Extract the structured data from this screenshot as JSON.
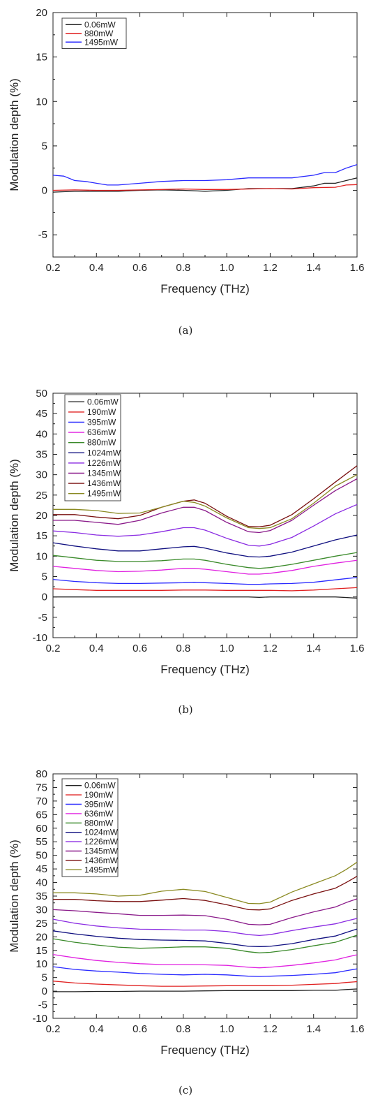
{
  "chart_data": [
    {
      "type": "line",
      "caption": "(a)",
      "xlabel": "Frequency (THz)",
      "ylabel": "Modulation depth (%)",
      "xlim": [
        0.2,
        1.6
      ],
      "ylim": [
        -7.5,
        20
      ],
      "xticks": [
        "0.2",
        "0.4",
        "0.6",
        "0.8",
        "1.0",
        "1.2",
        "1.4",
        "1.6"
      ],
      "yticks": [
        "-5",
        "0",
        "5",
        "10",
        "15",
        "20"
      ],
      "legend_position": "top-left",
      "series": [
        {
          "name": "0.06mW",
          "color": "#222222",
          "x": [
            0.2,
            0.3,
            0.4,
            0.5,
            0.6,
            0.7,
            0.8,
            0.9,
            1.0,
            1.1,
            1.2,
            1.3,
            1.4,
            1.45,
            1.5,
            1.55,
            1.6
          ],
          "y": [
            -0.2,
            -0.1,
            -0.1,
            -0.1,
            0.0,
            0.05,
            0.0,
            -0.1,
            0.0,
            0.2,
            0.2,
            0.2,
            0.5,
            0.8,
            0.8,
            1.1,
            1.4
          ]
        },
        {
          "name": "880mW",
          "color": "#e02020",
          "x": [
            0.2,
            0.3,
            0.4,
            0.5,
            0.6,
            0.7,
            0.8,
            0.9,
            1.0,
            1.1,
            1.2,
            1.3,
            1.4,
            1.5,
            1.55,
            1.6
          ],
          "y": [
            0.0,
            0.05,
            0.0,
            0.0,
            0.05,
            0.1,
            0.15,
            0.1,
            0.1,
            0.15,
            0.2,
            0.15,
            0.3,
            0.35,
            0.6,
            0.65
          ]
        },
        {
          "name": "1495mW",
          "color": "#2a2aff",
          "x": [
            0.2,
            0.25,
            0.3,
            0.35,
            0.4,
            0.45,
            0.5,
            0.55,
            0.6,
            0.7,
            0.8,
            0.9,
            1.0,
            1.1,
            1.2,
            1.3,
            1.4,
            1.45,
            1.5,
            1.55,
            1.6
          ],
          "y": [
            1.7,
            1.6,
            1.1,
            1.0,
            0.8,
            0.6,
            0.6,
            0.7,
            0.8,
            1.0,
            1.1,
            1.1,
            1.2,
            1.4,
            1.4,
            1.4,
            1.7,
            2.0,
            2.0,
            2.5,
            2.9
          ]
        }
      ]
    },
    {
      "type": "line",
      "caption": "(b)",
      "xlabel": "Frequency (THz)",
      "ylabel": "Modulation depth (%)",
      "xlim": [
        0.2,
        1.6
      ],
      "ylim": [
        -10,
        50
      ],
      "xticks": [
        "0.2",
        "0.4",
        "0.6",
        "0.8",
        "1.0",
        "1.2",
        "1.4",
        "1.6"
      ],
      "yticks": [
        "-10",
        "-5",
        "0",
        "5",
        "10",
        "15",
        "20",
        "25",
        "30",
        "35",
        "40",
        "45",
        "50"
      ],
      "legend_position": "top-left",
      "x": [
        0.2,
        0.3,
        0.4,
        0.5,
        0.6,
        0.7,
        0.8,
        0.85,
        0.9,
        1.0,
        1.1,
        1.15,
        1.2,
        1.3,
        1.4,
        1.5,
        1.6
      ],
      "series": [
        {
          "name": "0.06mW",
          "color": "#222222",
          "y": [
            0,
            0,
            0,
            0,
            0,
            0,
            0,
            0,
            0,
            0,
            0,
            -0.1,
            0,
            0,
            0,
            0,
            -0.3
          ]
        },
        {
          "name": "190mW",
          "color": "#e02020",
          "y": [
            2,
            1.8,
            1.6,
            1.6,
            1.6,
            1.6,
            1.7,
            1.7,
            1.7,
            1.6,
            1.6,
            1.6,
            1.6,
            1.5,
            1.7,
            2,
            2.3
          ]
        },
        {
          "name": "395mW",
          "color": "#2a2aff",
          "y": [
            4.3,
            3.8,
            3.5,
            3.3,
            3.3,
            3.4,
            3.5,
            3.6,
            3.5,
            3.3,
            3.1,
            3.1,
            3.2,
            3.3,
            3.6,
            4.2,
            4.8
          ]
        },
        {
          "name": "636mW",
          "color": "#e020e0",
          "y": [
            7.5,
            7,
            6.5,
            6.2,
            6.3,
            6.6,
            7,
            7,
            6.8,
            6.2,
            5.6,
            5.6,
            5.8,
            6.5,
            7.5,
            8.3,
            9
          ]
        },
        {
          "name": "880mW",
          "color": "#3a8a2a",
          "y": [
            10.2,
            9.6,
            9,
            8.7,
            8.7,
            8.9,
            9.3,
            9.3,
            9,
            8,
            7.2,
            7,
            7.2,
            8,
            9,
            10,
            10.9
          ]
        },
        {
          "name": "1024mW",
          "color": "#101080",
          "y": [
            13.3,
            12.5,
            11.8,
            11.3,
            11.3,
            11.8,
            12.3,
            12.4,
            12,
            10.8,
            9.9,
            9.8,
            10,
            11,
            12.5,
            14,
            15.2
          ]
        },
        {
          "name": "1226mW",
          "color": "#8a2be2",
          "y": [
            16.2,
            15.8,
            15.2,
            14.9,
            15.2,
            16,
            17,
            17,
            16.4,
            14.4,
            12.7,
            12.5,
            12.9,
            14.6,
            17.4,
            20.4,
            22.7
          ]
        },
        {
          "name": "1345mW",
          "color": "#8a1a8a",
          "y": [
            18.8,
            18.8,
            18.3,
            17.8,
            18.8,
            20.6,
            22,
            22,
            21.2,
            18.3,
            16,
            15.8,
            16.3,
            18.8,
            22.5,
            26.1,
            29
          ]
        },
        {
          "name": "1436mW",
          "color": "#7a1010",
          "y": [
            20.2,
            20.2,
            19.6,
            19.2,
            20,
            22,
            23.5,
            23.8,
            23,
            19.8,
            17.3,
            17.2,
            17.6,
            20.2,
            24.1,
            28.2,
            32.2
          ]
        },
        {
          "name": "1495mW",
          "color": "#8a8a22",
          "y": [
            21.5,
            21.5,
            21.2,
            20.5,
            20.6,
            22,
            23.5,
            23.2,
            22.3,
            19.4,
            17,
            16.8,
            17,
            19.2,
            23,
            27.2,
            30
          ]
        }
      ]
    },
    {
      "type": "line",
      "caption": "(c)",
      "xlabel": "Frequency (THz)",
      "ylabel": "Modulation depth (%)",
      "xlim": [
        0.2,
        1.6
      ],
      "ylim": [
        -10,
        80
      ],
      "xticks": [
        "0.2",
        "0.4",
        "0.6",
        "0.8",
        "1.0",
        "1.2",
        "1.4",
        "1.6"
      ],
      "yticks": [
        "-10",
        "-5",
        "0",
        "5",
        "10",
        "15",
        "20",
        "25",
        "30",
        "35",
        "40",
        "45",
        "50",
        "55",
        "60",
        "65",
        "70",
        "75",
        "80"
      ],
      "legend_position": "top-left",
      "x": [
        0.2,
        0.3,
        0.4,
        0.5,
        0.6,
        0.7,
        0.8,
        0.9,
        1.0,
        1.1,
        1.15,
        1.2,
        1.3,
        1.4,
        1.5,
        1.55,
        1.6
      ],
      "series": [
        {
          "name": "0.06mW",
          "color": "#222222",
          "y": [
            -0.2,
            -0.2,
            -0.1,
            -0.1,
            0,
            0,
            0,
            0.1,
            0.2,
            0.2,
            0.2,
            0.2,
            0.2,
            0.3,
            0.3,
            0.6,
            0.8
          ]
        },
        {
          "name": "190mW",
          "color": "#e02020",
          "y": [
            3.7,
            3,
            2.6,
            2.3,
            2,
            1.8,
            1.8,
            1.9,
            2,
            2,
            2,
            2,
            2.2,
            2.5,
            2.8,
            3.2,
            3.5
          ]
        },
        {
          "name": "395mW",
          "color": "#2a2aff",
          "y": [
            9,
            8,
            7.4,
            7,
            6.5,
            6.2,
            6,
            6.2,
            6,
            5.5,
            5.4,
            5.5,
            5.8,
            6.2,
            6.8,
            7.5,
            8.2
          ]
        },
        {
          "name": "636mW",
          "color": "#e020e0",
          "y": [
            13.5,
            12.3,
            11.3,
            10.6,
            10.1,
            9.8,
            9.8,
            9.7,
            9.5,
            8.8,
            8.6,
            8.8,
            9.5,
            10.4,
            11.5,
            12.5,
            13.4
          ]
        },
        {
          "name": "880mW",
          "color": "#3a8a2a",
          "y": [
            19.3,
            18,
            17,
            16.2,
            15.8,
            16,
            16.3,
            16.3,
            15.8,
            14.5,
            14.1,
            14.3,
            15.3,
            16.7,
            18,
            19.3,
            20.6
          ]
        },
        {
          "name": "1024mW",
          "color": "#101080",
          "y": [
            22.2,
            21.1,
            20.2,
            19.5,
            19,
            18.8,
            18.7,
            18.5,
            17.6,
            16.5,
            16.4,
            16.5,
            17.5,
            19,
            20.3,
            21.6,
            22.9
          ]
        },
        {
          "name": "1226mW",
          "color": "#8a2be2",
          "y": [
            26.5,
            25,
            24,
            23.3,
            22.8,
            22.7,
            22.5,
            22.5,
            22,
            20.8,
            20.5,
            20.8,
            22.3,
            23.6,
            24.8,
            25.8,
            26.8
          ]
        },
        {
          "name": "1345mW",
          "color": "#8a1a8a",
          "y": [
            30,
            29.6,
            29,
            28.5,
            27.9,
            27.9,
            28,
            27.8,
            26.5,
            24.6,
            24.4,
            24.6,
            27.1,
            29.2,
            31,
            32.6,
            34
          ]
        },
        {
          "name": "1436mW",
          "color": "#7a1010",
          "y": [
            33.8,
            33.8,
            33.3,
            33,
            33,
            33.5,
            34.1,
            33.4,
            31.8,
            30,
            29.9,
            30.3,
            33.4,
            35.8,
            37.9,
            40,
            42.3
          ]
        },
        {
          "name": "1495mW",
          "color": "#8a8a22",
          "y": [
            36.2,
            36.2,
            35.8,
            35,
            35.3,
            36.8,
            37.5,
            36.7,
            34.5,
            32.3,
            32.2,
            32.8,
            36.5,
            39.5,
            42.5,
            44.8,
            47.5
          ]
        }
      ]
    }
  ]
}
